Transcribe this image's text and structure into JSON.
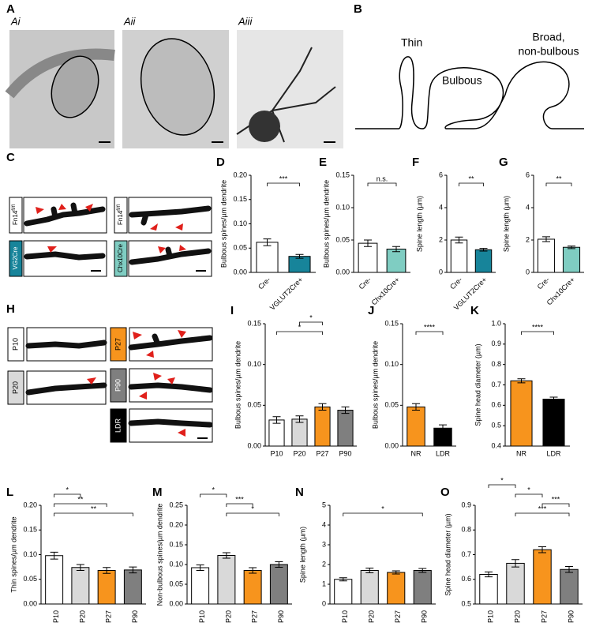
{
  "panel_labels": [
    "A",
    "B",
    "C",
    "H"
  ],
  "image_labels": [
    "Ai",
    "Aii",
    "Aiii"
  ],
  "diagram_labels": [
    "Thin",
    "Bulbous",
    "Broad,",
    "non-bulbous"
  ],
  "c_labels": [
    {
      "base": "Fn14",
      "sup": "fl/fl"
    },
    "VG2Cre",
    {
      "base": "Fn14",
      "sup": "fl/fl"
    },
    "Chx10Cre"
  ],
  "h_labels": [
    "P10",
    "P20",
    "P27",
    "P90",
    "LDR"
  ],
  "charts": [
    {
      "type": "bar",
      "panel": "D",
      "ylabel": "Bulbous spines/µm dendrite",
      "categories": [
        "Cre-",
        "VGLUT2Cre+"
      ],
      "values": [
        0.062,
        0.033
      ],
      "errors": [
        0.007,
        0.004
      ],
      "colors": [
        "#ffffff",
        "#17849a"
      ],
      "ylim": [
        0,
        0.2
      ],
      "yticks": [
        {
          "value": 0,
          "label": "0.00"
        },
        0.05,
        {
          "value": 0.1,
          "label": "0.10"
        },
        0.15,
        {
          "value": 0.2,
          "label": "0.20"
        }
      ],
      "significance": [
        {
          "pair": [
            "Cre-",
            "VGLUT2Cre+"
          ],
          "label": "***"
        }
      ]
    },
    {
      "type": "bar",
      "panel": "E",
      "ylabel": "Bulbous spines/µm dendrite",
      "categories": [
        "Cre-",
        "Chx10Cre+"
      ],
      "values": [
        0.045,
        0.036
      ],
      "errors": [
        0.005,
        0.004
      ],
      "colors": [
        "#ffffff",
        "#7fcdc2"
      ],
      "ylim": [
        0,
        0.15
      ],
      "yticks": [
        {
          "value": 0,
          "label": "0.00"
        },
        0.05,
        {
          "value": 0.1,
          "label": "0.10"
        },
        0.15
      ],
      "significance": [
        {
          "pair": [
            "Cre-",
            "Chx10Cre+"
          ],
          "label": "n.s."
        }
      ]
    },
    {
      "type": "bar",
      "panel": "F",
      "ylabel": "Spine length (µm)",
      "categories": [
        "Cre-",
        "VGLUT2Cre+"
      ],
      "values": [
        2.0,
        1.4
      ],
      "errors": [
        0.18,
        0.08
      ],
      "colors": [
        "#ffffff",
        "#17849a"
      ],
      "ylim": [
        0,
        6
      ],
      "yticks": [
        0,
        2,
        4,
        6
      ],
      "significance": [
        {
          "pair": [
            "Cre-",
            "VGLUT2Cre+"
          ],
          "label": "**"
        }
      ]
    },
    {
      "type": "bar",
      "panel": "G",
      "ylabel": "Spine length (µm)",
      "categories": [
        "Cre-",
        "Chx10Cre+"
      ],
      "values": [
        2.05,
        1.55
      ],
      "errors": [
        0.15,
        0.08
      ],
      "colors": [
        "#ffffff",
        "#7fcdc2"
      ],
      "ylim": [
        0,
        6
      ],
      "yticks": [
        0,
        2,
        4,
        6
      ],
      "significance": [
        {
          "pair": [
            "Cre-",
            "Chx10Cre+"
          ],
          "label": "**"
        }
      ]
    },
    {
      "type": "bar",
      "panel": "I",
      "ylabel": "Bulbous spines/µm dendrite",
      "categories": [
        "P10",
        "P20",
        "P27",
        "P90"
      ],
      "values": [
        0.032,
        0.033,
        0.048,
        0.044
      ],
      "errors": [
        0.004,
        0.004,
        0.004,
        0.004
      ],
      "colors": [
        "#ffffff",
        "#d9d9d9",
        "#f7941d",
        "#7f7f7f"
      ],
      "ylim": [
        0,
        0.15
      ],
      "yticks": [
        {
          "value": 0,
          "label": "0.00"
        },
        0.05,
        {
          "value": 0.1,
          "label": "0.10"
        },
        0.15
      ],
      "significance": [
        {
          "pair": [
            "P20",
            "P27"
          ],
          "label": "*"
        },
        {
          "pair": [
            "P10",
            "P27"
          ],
          "label": "*"
        }
      ]
    },
    {
      "type": "bar",
      "panel": "J",
      "ylabel": "Bulbous spines/µm dendrite",
      "categories": [
        "NR",
        "LDR"
      ],
      "values": [
        0.048,
        0.022
      ],
      "errors": [
        0.004,
        0.004
      ],
      "colors": [
        "#f7941d",
        "#000000"
      ],
      "ylim": [
        0,
        0.15
      ],
      "yticks": [
        {
          "value": 0,
          "label": "0.00"
        },
        0.05,
        {
          "value": 0.1,
          "label": "0.10"
        },
        0.15
      ],
      "significance": [
        {
          "pair": [
            "NR",
            "LDR"
          ],
          "label": "****"
        }
      ]
    },
    {
      "type": "bar",
      "panel": "K",
      "ylabel": "Spine head diameter (µm)",
      "categories": [
        "NR",
        "LDR"
      ],
      "values": [
        0.72,
        0.63
      ],
      "errors": [
        0.01,
        0.01
      ],
      "colors": [
        "#f7941d",
        "#000000"
      ],
      "ylim": [
        0.4,
        1.0
      ],
      "yticks": [
        0.4,
        0.5,
        0.6,
        0.7,
        0.8,
        0.9,
        {
          "value": 1.0,
          "label": "1.0"
        }
      ],
      "significance": [
        {
          "pair": [
            "NR",
            "LDR"
          ],
          "label": "****"
        }
      ]
    },
    {
      "type": "bar",
      "panel": "L",
      "ylabel": "Thin spines/µm dendrite",
      "categories": [
        "P10",
        "P20",
        "P27",
        "P90"
      ],
      "values": [
        0.098,
        0.074,
        0.068,
        0.069
      ],
      "errors": [
        0.007,
        0.006,
        0.006,
        0.006
      ],
      "colors": [
        "#ffffff",
        "#d9d9d9",
        "#f7941d",
        "#7f7f7f"
      ],
      "ylim": [
        0,
        0.2
      ],
      "yticks": [
        {
          "value": 0,
          "label": "0.00"
        },
        0.05,
        {
          "value": 0.1,
          "label": "0.10"
        },
        0.15,
        {
          "value": 0.2,
          "label": "0.20"
        }
      ],
      "significance": [
        {
          "pair": [
            "P10",
            "P20"
          ],
          "label": "*"
        },
        {
          "pair": [
            "P10",
            "P27"
          ],
          "label": "**"
        },
        {
          "pair": [
            "P10",
            "P90"
          ],
          "label": "**"
        }
      ]
    },
    {
      "type": "bar",
      "panel": "M",
      "ylabel": "Non-bulbous spines/µm dendrite",
      "categories": [
        "P10",
        "P20",
        "P27",
        "P90"
      ],
      "values": [
        0.092,
        0.123,
        0.085,
        0.1
      ],
      "errors": [
        0.007,
        0.007,
        0.007,
        0.007
      ],
      "colors": [
        "#ffffff",
        "#d9d9d9",
        "#f7941d",
        "#7f7f7f"
      ],
      "ylim": [
        0,
        0.25
      ],
      "yticks": [
        {
          "value": 0,
          "label": "0.00"
        },
        0.05,
        {
          "value": 0.1,
          "label": "0.10"
        },
        0.15,
        {
          "value": 0.2,
          "label": "0.20"
        },
        0.25
      ],
      "significance": [
        {
          "pair": [
            "P10",
            "P20"
          ],
          "label": "*"
        },
        {
          "pair": [
            "P20",
            "P27"
          ],
          "label": "***"
        },
        {
          "pair": [
            "P20",
            "P90"
          ],
          "label": "*"
        }
      ]
    },
    {
      "type": "bar",
      "panel": "N",
      "ylabel": "Spine length (µm)",
      "categories": [
        "P10",
        "P20",
        "P27",
        "P90"
      ],
      "values": [
        1.25,
        1.7,
        1.6,
        1.7
      ],
      "errors": [
        0.08,
        0.12,
        0.08,
        0.1
      ],
      "colors": [
        "#ffffff",
        "#d9d9d9",
        "#f7941d",
        "#7f7f7f"
      ],
      "ylim": [
        0,
        5
      ],
      "yticks": [
        0,
        1,
        2,
        3,
        4,
        5
      ],
      "significance": [
        {
          "pair": [
            "P10",
            "P90"
          ],
          "label": "*"
        }
      ]
    },
    {
      "type": "bar",
      "panel": "O",
      "ylabel": "Spine head diameter (µm)",
      "categories": [
        "P10",
        "P20",
        "P27",
        "P90"
      ],
      "values": [
        0.62,
        0.665,
        0.72,
        0.64
      ],
      "errors": [
        0.01,
        0.015,
        0.012,
        0.012
      ],
      "colors": [
        "#ffffff",
        "#d9d9d9",
        "#f7941d",
        "#7f7f7f"
      ],
      "ylim": [
        0.5,
        0.9
      ],
      "yticks": [
        0.5,
        0.6,
        0.7,
        0.8,
        0.9
      ],
      "significance": [
        {
          "pair": [
            "P10",
            "P20"
          ],
          "label": "*"
        },
        {
          "pair": [
            "P20",
            "P27"
          ],
          "label": "*"
        },
        {
          "pair": [
            "P27",
            "P90"
          ],
          "label": "***"
        },
        {
          "pair": [
            "P20",
            "P90"
          ],
          "label": "***"
        }
      ]
    }
  ]
}
